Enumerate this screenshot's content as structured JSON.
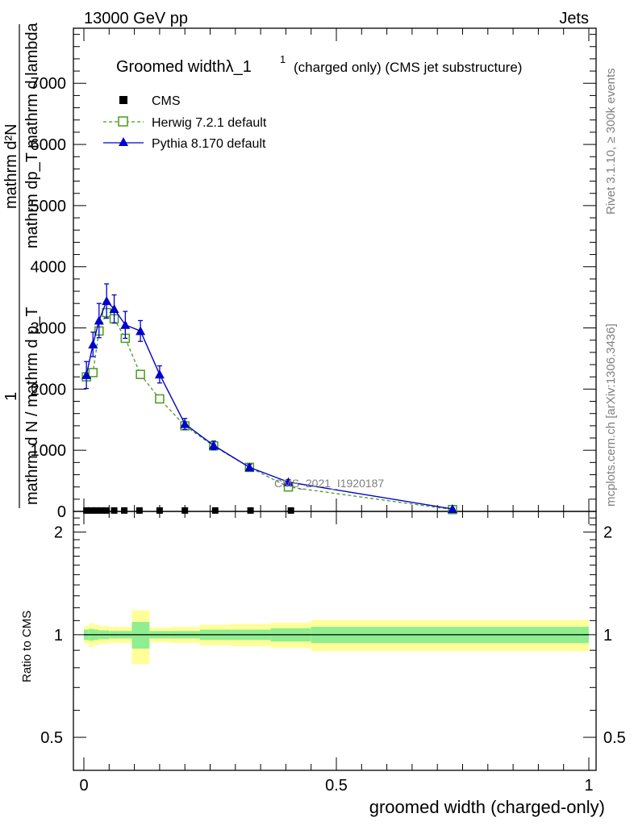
{
  "header": {
    "left": "13000 GeV pp",
    "right": "Jets"
  },
  "side_labels": {
    "rivet": "Rivet 3.1.10, ≥ 300k events",
    "mcplots": "mcplots.cern.ch [arXiv:1306.3436]"
  },
  "main_plot": {
    "title_main": "Groomed widthλ_1",
    "title_sup": "1",
    "title_suffix": "(charged only) (CMS jet substructure)",
    "ylabel_top": "mathrm d²N",
    "ylabel_top_sub": "mathrm dp_T mathrm d lambda",
    "ylabel_bottom": "mathrm d N / mathrm d p_T",
    "ylabel_one": "1",
    "watermark": "CMS_2021_I1920187"
  },
  "ratio_plot": {
    "ylabel": "Ratio to CMS"
  },
  "xaxis_label": "groomed width (charged-only)",
  "chart_data": {
    "type": "line",
    "x_scale": "linear",
    "xlim": [
      -0.02,
      1.0
    ],
    "ylim": [
      0,
      7900
    ],
    "ratio_ylim": [
      0.4,
      2.3
    ],
    "ratio_scale": "log",
    "yticks_main": [
      0,
      1000,
      2000,
      3000,
      4000,
      5000,
      6000,
      7000
    ],
    "ytick_labels_main": [
      "0",
      "1000",
      "2000",
      "3000",
      "4000",
      "5000",
      "6000",
      "7000"
    ],
    "xticks": [
      0,
      0.5,
      1
    ],
    "xtick_labels": [
      "0",
      "0.5",
      "1"
    ],
    "ratio_yticks": [
      0.5,
      1,
      2
    ],
    "ratio_ytick_labels": [
      "0.5",
      "1",
      "2"
    ],
    "legend_position": "top-left",
    "series": [
      {
        "name": "CMS",
        "style": "data",
        "color": "#000000",
        "x": [
          0.005,
          0.015,
          0.025,
          0.035,
          0.045,
          0.06,
          0.08,
          0.11,
          0.15,
          0.2,
          0.26,
          0.33,
          0.41,
          0.73
        ],
        "y": [
          15,
          15,
          15,
          15,
          15,
          15,
          15,
          15,
          15,
          15,
          15,
          15,
          15,
          15
        ]
      },
      {
        "name": "Herwig 7.2.1 default",
        "style": "dashed-open-square",
        "color": "#4a9a1e",
        "x": [
          0.005,
          0.018,
          0.03,
          0.045,
          0.06,
          0.082,
          0.112,
          0.15,
          0.2,
          0.257,
          0.328,
          0.405,
          0.73
        ],
        "y": [
          2200,
          2270,
          2950,
          3250,
          3150,
          2830,
          2240,
          1840,
          1400,
          1070,
          720,
          400,
          30
        ]
      },
      {
        "name": "Pythia 8.170 default",
        "style": "solid-triangle",
        "color": "#0000cc",
        "x": [
          0.005,
          0.018,
          0.03,
          0.045,
          0.06,
          0.082,
          0.112,
          0.15,
          0.2,
          0.257,
          0.328,
          0.405,
          0.73
        ],
        "y": [
          2230,
          2730,
          3120,
          3440,
          3310,
          3050,
          2950,
          2240,
          1430,
          1080,
          720,
          480,
          40
        ],
        "yerr": [
          220,
          200,
          280,
          280,
          230,
          220,
          170,
          140,
          90,
          70,
          50,
          40,
          10
        ]
      }
    ],
    "ratio_bands": {
      "x_edges": [
        0,
        0.01,
        0.02,
        0.03,
        0.05,
        0.07,
        0.095,
        0.13,
        0.17,
        0.23,
        0.29,
        0.37,
        0.45,
        1.0
      ],
      "inner_half": [
        0.035,
        0.04,
        0.035,
        0.03,
        0.025,
        0.025,
        0.09,
        0.025,
        0.025,
        0.035,
        0.035,
        0.045,
        0.055
      ],
      "outer_half": [
        0.06,
        0.08,
        0.07,
        0.06,
        0.055,
        0.055,
        0.18,
        0.05,
        0.055,
        0.07,
        0.075,
        0.085,
        0.105
      ],
      "inner_color": "#90ee90",
      "outer_color": "#ffff99"
    }
  }
}
